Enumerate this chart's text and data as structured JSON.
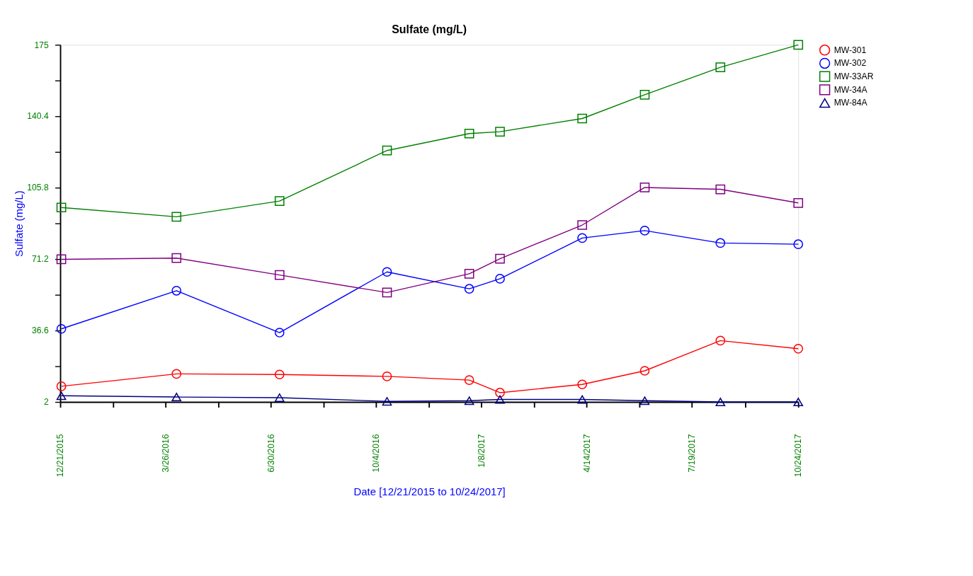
{
  "chart_data": {
    "type": "line",
    "title": "Sulfate (mg/L)",
    "xlabel": "Date [12/21/2015 to 10/24/2017]",
    "ylabel": "Sulfate (mg/L)",
    "x": [
      "2015-12-22",
      "2016-04-05",
      "2016-07-08",
      "2016-10-14",
      "2016-12-28",
      "2017-01-25",
      "2017-04-10",
      "2017-06-06",
      "2017-08-14",
      "2017-10-24"
    ],
    "series": [
      {
        "name": "MW-301",
        "color": "#ff0000",
        "marker": "circle",
        "values": [
          9.6,
          15.6,
          15.3,
          14.4,
          12.6,
          6.5,
          10.5,
          17.1,
          31.7,
          27.8
        ]
      },
      {
        "name": "MW-302",
        "color": "#0000ff",
        "marker": "circle",
        "values": [
          37.4,
          55.9,
          35.6,
          65.0,
          56.8,
          61.7,
          81.4,
          85.0,
          79.0,
          78.4
        ]
      },
      {
        "name": "MW-33AR",
        "color": "#008000",
        "marker": "square",
        "values": [
          96.2,
          91.7,
          99.3,
          123.8,
          132.0,
          132.9,
          139.3,
          150.8,
          164.1,
          175.0
        ]
      },
      {
        "name": "MW-34A",
        "color": "#800080",
        "marker": "square",
        "values": [
          71.1,
          71.7,
          63.5,
          55.0,
          64.1,
          71.4,
          87.7,
          105.9,
          105.0,
          98.4
        ]
      },
      {
        "name": "MW-84A",
        "color": "#000080",
        "marker": "triangle",
        "values": [
          5.0,
          4.4,
          4.1,
          2.3,
          2.6,
          3.2,
          3.2,
          2.6,
          2.0,
          2.0
        ]
      }
    ],
    "xlim": [
      "2015-12-21",
      "2017-10-24"
    ],
    "xticks": [
      {
        "value": "2015-12-21",
        "label": "12/21/2015"
      },
      {
        "value": "2016-02-07",
        "label": null
      },
      {
        "value": "2016-03-26",
        "label": "3/26/2016"
      },
      {
        "value": "2016-05-13",
        "label": null
      },
      {
        "value": "2016-06-30",
        "label": "6/30/2016"
      },
      {
        "value": "2016-08-17",
        "label": null
      },
      {
        "value": "2016-10-04",
        "label": "10/4/2016"
      },
      {
        "value": "2016-11-21",
        "label": null
      },
      {
        "value": "2017-01-08",
        "label": "1/8/2017"
      },
      {
        "value": "2017-02-25",
        "label": null
      },
      {
        "value": "2017-04-14",
        "label": "4/14/2017"
      },
      {
        "value": "2017-06-01",
        "label": null
      },
      {
        "value": "2017-07-19",
        "label": "7/19/2017"
      },
      {
        "value": "2017-09-06",
        "label": null
      },
      {
        "value": "2017-10-24",
        "label": "10/24/2017"
      }
    ],
    "ylim": [
      2,
      175
    ],
    "yticks": [
      2,
      {
        "value": 19.3,
        "label": null
      },
      36.6,
      {
        "value": 53.9,
        "label": null
      },
      71.2,
      {
        "value": 88.5,
        "label": null
      },
      105.8,
      {
        "value": 123.1,
        "label": null
      },
      140.4,
      {
        "value": 157.7,
        "label": null
      },
      175
    ],
    "grid": false,
    "legend": "top right",
    "line_style": "solid"
  }
}
